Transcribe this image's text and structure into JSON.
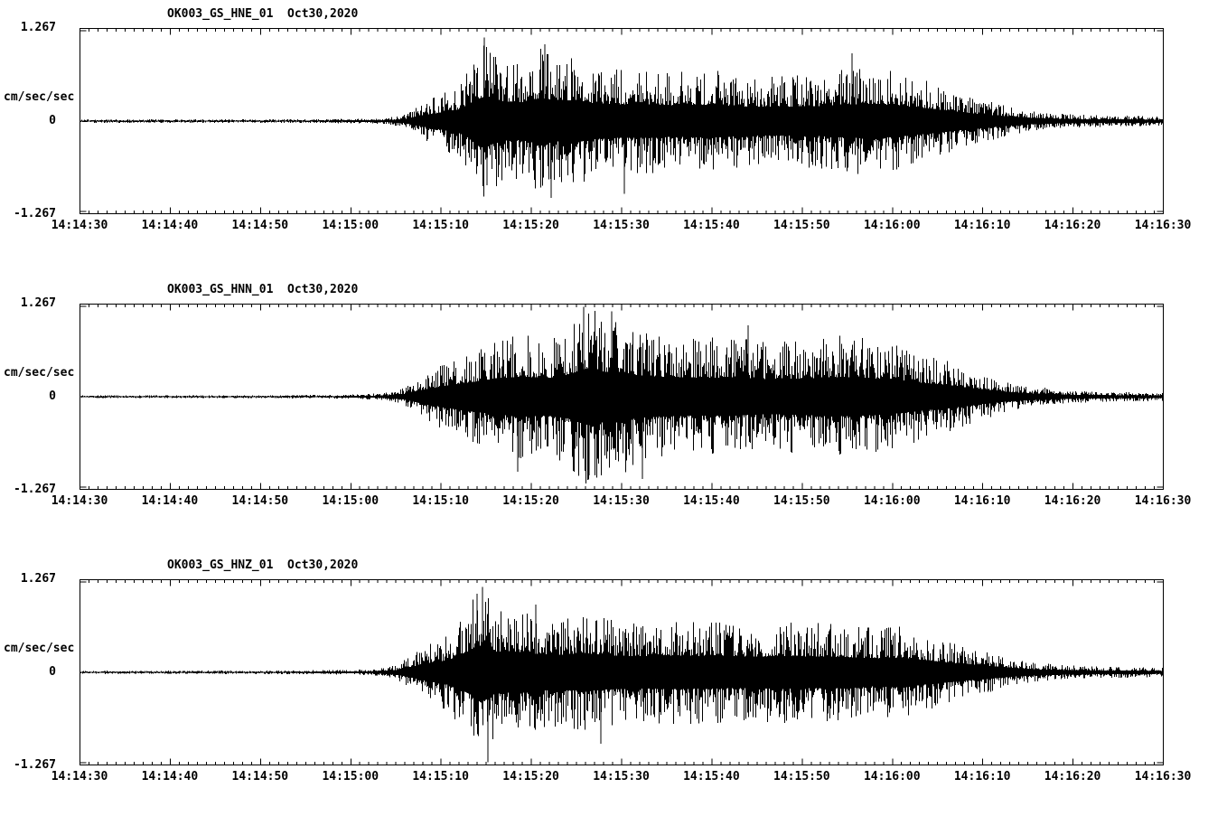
{
  "figure": {
    "background": "#ffffff",
    "line_color": "#000000"
  },
  "axis": {
    "y_max": "1.267",
    "y_zero": "0",
    "y_min": "-1.267",
    "unit": "cm/sec/sec"
  },
  "panels": [
    {
      "title": "OK003_GS_HNE_01  Oct30,2020"
    },
    {
      "title": "OK003_GS_HNN_01  Oct30,2020"
    },
    {
      "title": "OK003_GS_HNZ_01  Oct30,2020"
    }
  ],
  "chart_data": {
    "type": "line",
    "subtype": "seismogram-strong-motion",
    "station": "OK003",
    "network": "GS",
    "date": "Oct30,2020",
    "ylabel": "cm/sec/sec",
    "y_range": [
      -1.267,
      1.267
    ],
    "y_tick_labels": [
      "1.267",
      "0",
      "-1.267"
    ],
    "x_range_seconds": [
      0,
      120
    ],
    "x_start_time": "14:14:30",
    "x_end_time": "14:16:30",
    "x_tick_interval_seconds": 10,
    "x_minor_tick_interval_seconds": 1,
    "x_tick_labels": [
      "14:14:30",
      "14:14:40",
      "14:14:50",
      "14:15:00",
      "14:15:10",
      "14:15:20",
      "14:15:30",
      "14:15:40",
      "14:15:50",
      "14:16:00",
      "14:16:10",
      "14:16:20",
      "14:16:30"
    ],
    "representation": "high-frequency waveform; envelope points are [seconds_after_14:14:30, amplitude_cm_per_sec2]",
    "panels": [
      {
        "channel": "HNE",
        "title": "OK003_GS_HNE_01  Oct30,2020",
        "envelope": [
          [
            0,
            0.025
          ],
          [
            20,
            0.025
          ],
          [
            30,
            0.03
          ],
          [
            34,
            0.045
          ],
          [
            36,
            0.09
          ],
          [
            38,
            0.25
          ],
          [
            40,
            0.38
          ],
          [
            42,
            0.52
          ],
          [
            44,
            0.95
          ],
          [
            45,
            1.1
          ],
          [
            47,
            0.85
          ],
          [
            49,
            0.82
          ],
          [
            51,
            1.02
          ],
          [
            53,
            0.88
          ],
          [
            55,
            0.92
          ],
          [
            57,
            0.78
          ],
          [
            60,
            0.72
          ],
          [
            63,
            0.74
          ],
          [
            66,
            0.68
          ],
          [
            70,
            0.73
          ],
          [
            74,
            0.62
          ],
          [
            78,
            0.63
          ],
          [
            82,
            0.66
          ],
          [
            85,
            0.73
          ],
          [
            88,
            0.76
          ],
          [
            91,
            0.66
          ],
          [
            94,
            0.56
          ],
          [
            97,
            0.42
          ],
          [
            100,
            0.3
          ],
          [
            103,
            0.2
          ],
          [
            106,
            0.13
          ],
          [
            110,
            0.09
          ],
          [
            115,
            0.075
          ],
          [
            120,
            0.065
          ]
        ],
        "spikes": [
          [
            44.8,
            1.17
          ],
          [
            45.1,
            -0.9
          ],
          [
            51.5,
            1.08
          ],
          [
            52.2,
            -1.08
          ],
          [
            60.3,
            -1.02
          ],
          [
            85.5,
            0.95
          ]
        ]
      },
      {
        "channel": "HNN",
        "title": "OK003_GS_HNN_01  Oct30,2020",
        "envelope": [
          [
            0,
            0.02
          ],
          [
            20,
            0.022
          ],
          [
            30,
            0.03
          ],
          [
            34,
            0.055
          ],
          [
            36,
            0.13
          ],
          [
            38,
            0.3
          ],
          [
            40,
            0.45
          ],
          [
            43,
            0.62
          ],
          [
            46,
            0.78
          ],
          [
            49,
            0.88
          ],
          [
            52,
            0.82
          ],
          [
            54,
            0.95
          ],
          [
            56,
            1.22
          ],
          [
            57,
            1.26
          ],
          [
            58,
            1.08
          ],
          [
            60,
            1.1
          ],
          [
            62,
            0.92
          ],
          [
            65,
            0.86
          ],
          [
            68,
            0.82
          ],
          [
            72,
            0.84
          ],
          [
            76,
            0.76
          ],
          [
            80,
            0.8
          ],
          [
            84,
            0.86
          ],
          [
            87,
            0.82
          ],
          [
            90,
            0.76
          ],
          [
            93,
            0.62
          ],
          [
            96,
            0.52
          ],
          [
            99,
            0.36
          ],
          [
            102,
            0.24
          ],
          [
            105,
            0.15
          ],
          [
            110,
            0.085
          ],
          [
            115,
            0.065
          ],
          [
            120,
            0.06
          ]
        ],
        "spikes": [
          [
            48.5,
            -1.05
          ],
          [
            55.8,
            1.26
          ],
          [
            56.4,
            -1.1
          ],
          [
            58.9,
            1.2
          ],
          [
            62.3,
            -1.15
          ],
          [
            74.0,
            1.0
          ]
        ]
      },
      {
        "channel": "HNZ",
        "title": "OK003_GS_HNZ_01  Oct30,2020",
        "envelope": [
          [
            0,
            0.022
          ],
          [
            20,
            0.025
          ],
          [
            30,
            0.032
          ],
          [
            33,
            0.05
          ],
          [
            35,
            0.1
          ],
          [
            37,
            0.26
          ],
          [
            39,
            0.42
          ],
          [
            41,
            0.56
          ],
          [
            43,
            0.92
          ],
          [
            44,
            1.15
          ],
          [
            45,
            1.2
          ],
          [
            46,
            0.92
          ],
          [
            48,
            0.86
          ],
          [
            50,
            0.82
          ],
          [
            53,
            0.76
          ],
          [
            56,
            0.82
          ],
          [
            59,
            0.74
          ],
          [
            62,
            0.7
          ],
          [
            66,
            0.73
          ],
          [
            70,
            0.71
          ],
          [
            74,
            0.69
          ],
          [
            78,
            0.71
          ],
          [
            82,
            0.69
          ],
          [
            85,
            0.66
          ],
          [
            88,
            0.62
          ],
          [
            91,
            0.64
          ],
          [
            94,
            0.52
          ],
          [
            97,
            0.4
          ],
          [
            100,
            0.3
          ],
          [
            103,
            0.2
          ],
          [
            106,
            0.13
          ],
          [
            110,
            0.095
          ],
          [
            115,
            0.075
          ],
          [
            120,
            0.065
          ]
        ],
        "spikes": [
          [
            44.0,
            1.1
          ],
          [
            44.6,
            1.2
          ],
          [
            45.2,
            -1.26
          ],
          [
            50.5,
            0.95
          ],
          [
            57.7,
            -1.0
          ]
        ]
      }
    ]
  }
}
